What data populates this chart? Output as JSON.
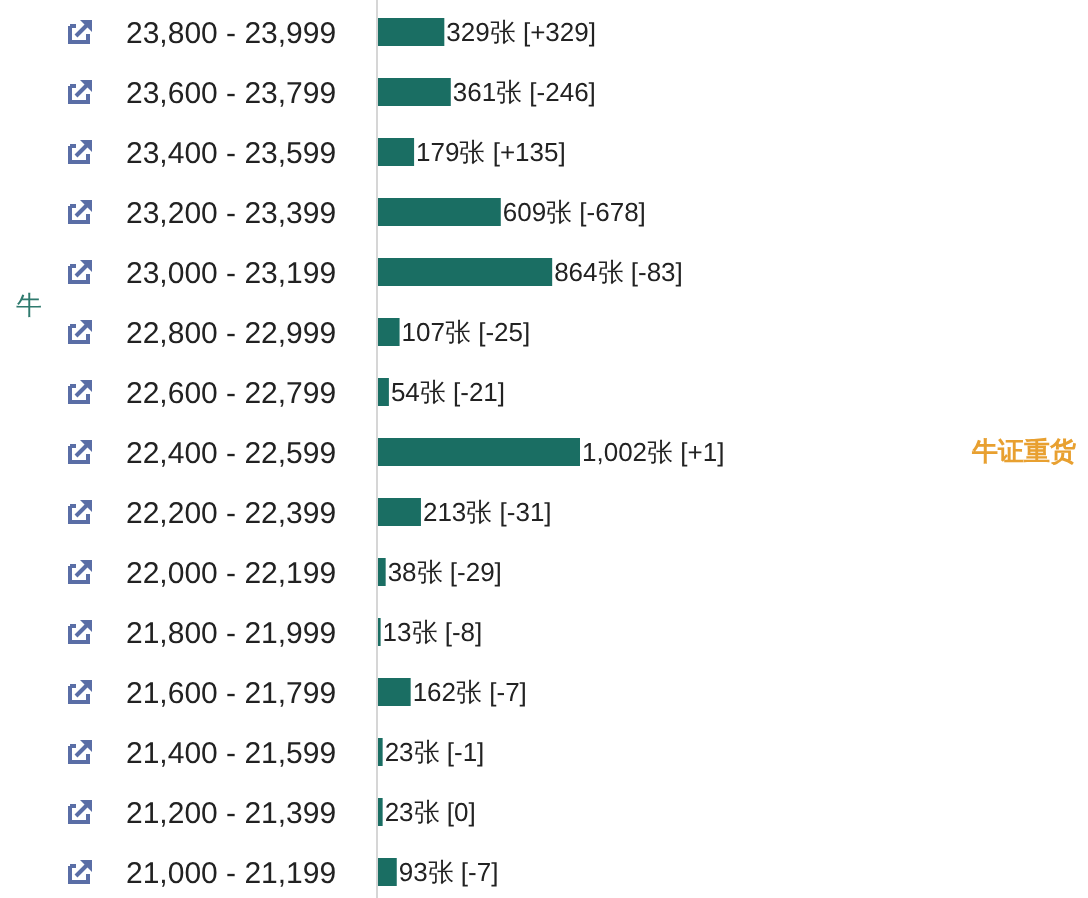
{
  "chart_data": {
    "type": "bar",
    "orientation": "horizontal",
    "categories": [
      "23,800 - 23,999",
      "23,600 - 23,799",
      "23,400 - 23,599",
      "23,200 - 23,399",
      "23,000 - 23,199",
      "22,800 - 22,999",
      "22,600 - 22,799",
      "22,400 - 22,599",
      "22,200 - 22,399",
      "22,000 - 22,199",
      "21,800 - 21,999",
      "21,600 - 21,799",
      "21,400 - 21,599",
      "21,200 - 21,399",
      "21,000 - 21,199"
    ],
    "values": [
      329,
      361,
      179,
      609,
      864,
      107,
      54,
      1002,
      213,
      38,
      13,
      162,
      23,
      23,
      93
    ],
    "color": "#1a6e63",
    "value_labels": [
      "329张 [+329]",
      "361张 [-246]",
      "179张 [+135]",
      "609张 [-678]",
      "864张 [-83]",
      "107张 [-25]",
      "54张 [-21]",
      "1,002张 [+1]",
      "213张 [-31]",
      "38张 [-29]",
      "13张 [-8]",
      "162张 [-7]",
      "23张 [-1]",
      "23张 [0]",
      "93张 [-7]"
    ],
    "annotations": [
      "牛",
      "牛证重货"
    ]
  }
}
